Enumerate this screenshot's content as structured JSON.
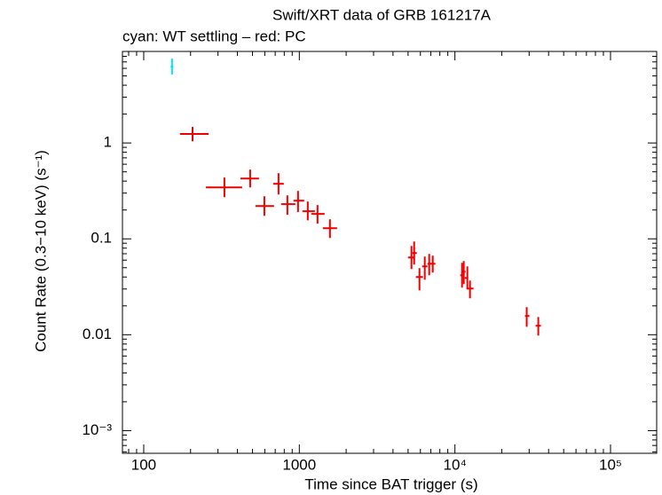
{
  "chart_data": {
    "type": "errorbar-scatter",
    "title": "Swift/XRT data of GRB 161217A",
    "subtitle": "cyan: WT settling – red: PC",
    "x_label": "Time since BAT trigger (s)",
    "y_label": "Count Rate (0.3−10 keV) (s⁻¹)",
    "xlog": true,
    "ylog": true,
    "xlim": [
      73,
      198000
    ],
    "ylim": [
      0.00058,
      9
    ],
    "xticks": [
      100,
      1000,
      {
        "value": 10000,
        "label": "10⁴"
      },
      {
        "value": 100000,
        "label": "10⁵"
      }
    ],
    "yticks": [
      {
        "value": 0.001,
        "label": "10⁻³"
      },
      0.01,
      0.1,
      1
    ],
    "series": [
      {
        "color": "#00e5ff",
        "x": [
          152
        ],
        "xmin": [
          149
        ],
        "xmax": [
          155
        ],
        "values": [
          6.26
        ],
        "ymin": [
          5.16
        ],
        "ymax": [
          7.58
        ]
      },
      {
        "color": "#ee0000",
        "x": [
          206,
          330,
          483,
          596,
          735,
          838,
          981,
          1133,
          1309,
          1573,
          5258,
          5470,
          5917,
          6401,
          6835,
          7203,
          11106,
          11402,
          12015,
          12498,
          28935,
          34337
        ],
        "xmin": [
          171,
          251,
          418,
          522,
          679,
          764,
          918,
          1047,
          1194,
          1416,
          4989,
          5328,
          5614,
          6154,
          6658,
          6928,
          10820,
          11106,
          11553,
          12015,
          28187,
          33000
        ],
        "xmax": [
          261,
          429,
          550,
          688,
          795,
          943,
          1075,
          1259,
          1454,
          1747,
          5541,
          5689,
          6235,
          6658,
          7017,
          7492,
          11402,
          11704,
          12174,
          13178,
          30102,
          35700
        ],
        "values": [
          1.24,
          0.344,
          0.426,
          0.22,
          0.375,
          0.23,
          0.25,
          0.194,
          0.182,
          0.129,
          0.0639,
          0.0711,
          0.04,
          0.0516,
          0.055,
          0.055,
          0.0417,
          0.0454,
          0.0391,
          0.0303,
          0.0157,
          0.0124
        ],
        "ymin": [
          1.04,
          0.272,
          0.344,
          0.174,
          0.29,
          0.178,
          0.19,
          0.156,
          0.144,
          0.102,
          0.0484,
          0.0539,
          0.029,
          0.0375,
          0.0417,
          0.0445,
          0.031,
          0.0337,
          0.0297,
          0.024,
          0.0121,
          0.0098
        ],
        "ymax": [
          1.47,
          0.436,
          0.528,
          0.278,
          0.484,
          0.284,
          0.316,
          0.245,
          0.225,
          0.16,
          0.0843,
          0.0938,
          0.0495,
          0.0653,
          0.0696,
          0.0667,
          0.0562,
          0.0587,
          0.0516,
          0.0367,
          0.0194,
          0.0153
        ]
      }
    ]
  }
}
